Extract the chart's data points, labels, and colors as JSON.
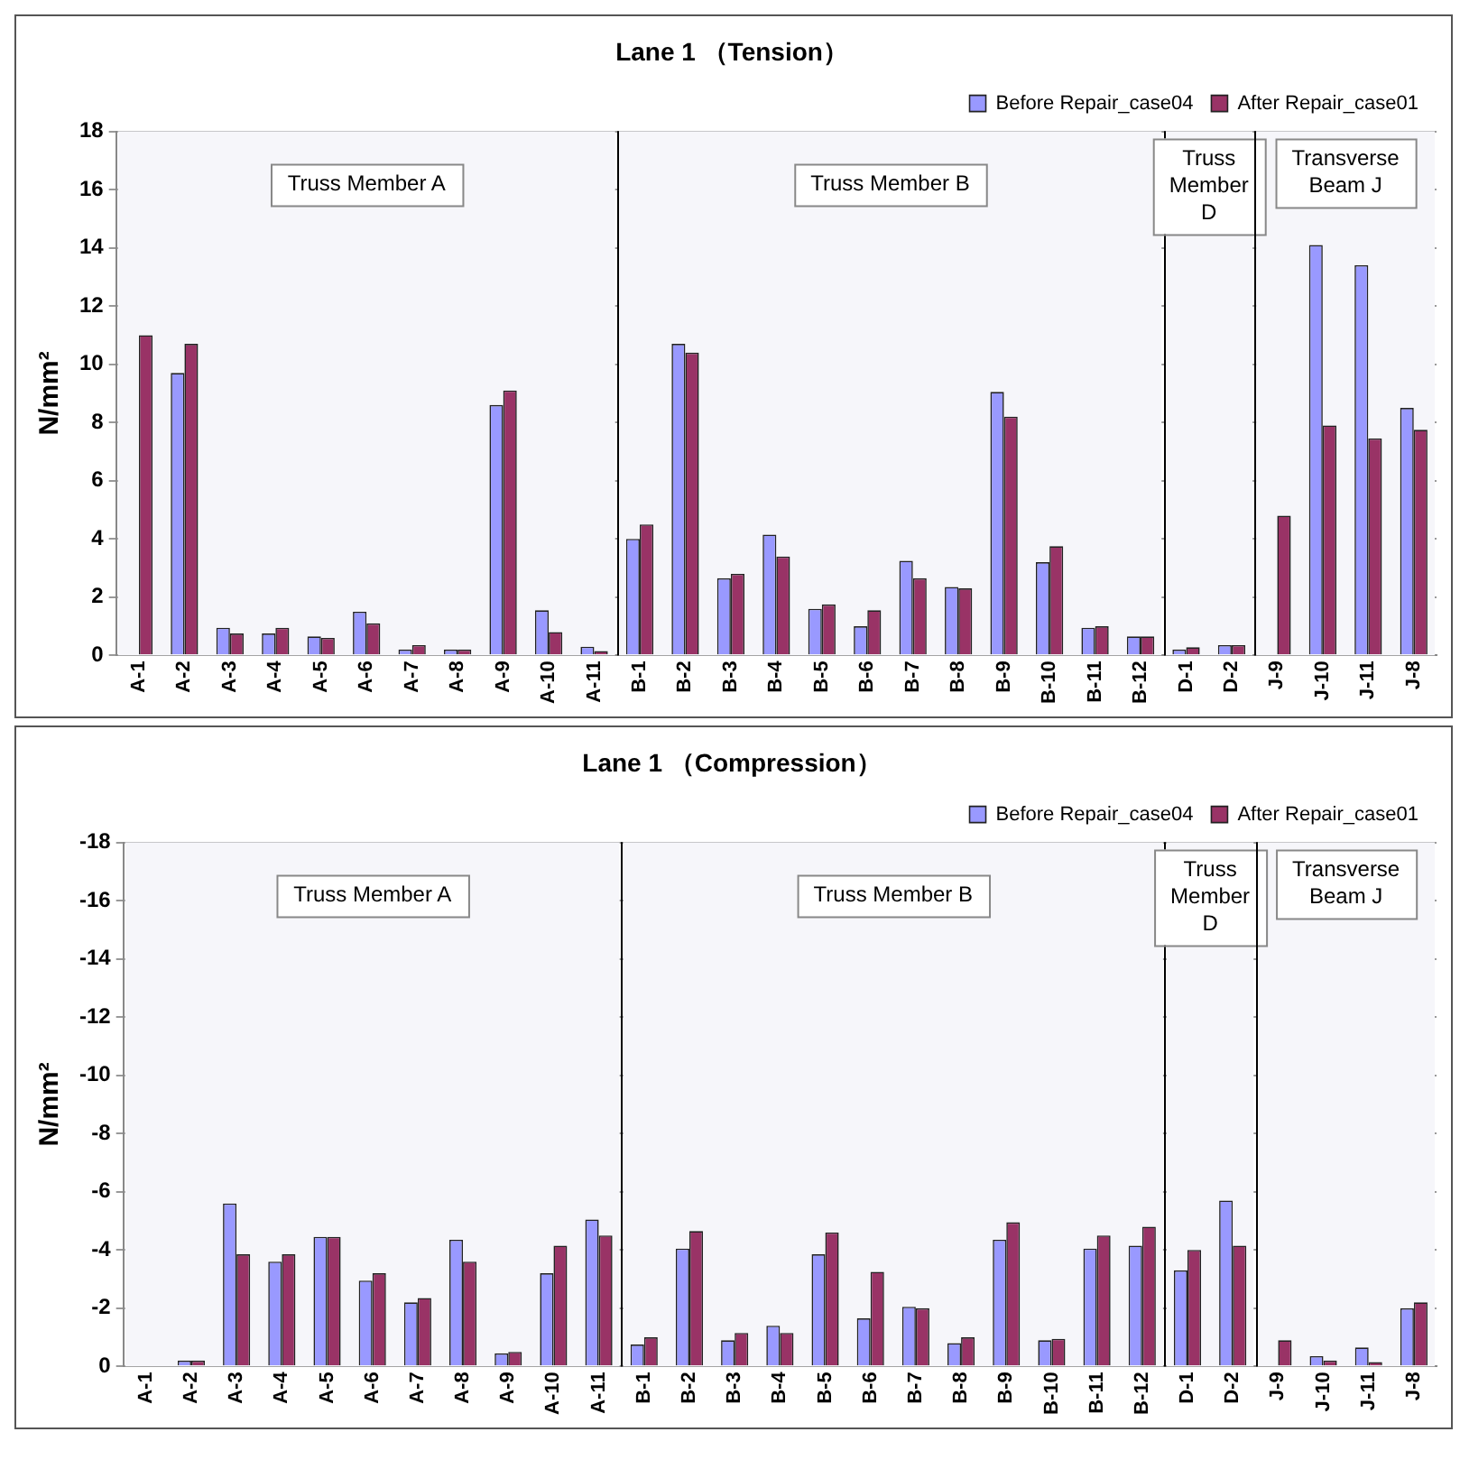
{
  "chart_data": [
    {
      "type": "bar",
      "title": "Lane 1 （Tension）",
      "ylabel": "N/mm²",
      "categories": [
        "A-1",
        "A-2",
        "A-3",
        "A-4",
        "A-5",
        "A-6",
        "A-7",
        "A-8",
        "A-9",
        "A-10",
        "A-11",
        "B-1",
        "B-2",
        "B-3",
        "B-4",
        "B-5",
        "B-6",
        "B-7",
        "B-8",
        "B-9",
        "B-10",
        "B-11",
        "B-12",
        "D-1",
        "D-2",
        "J-9",
        "J-10",
        "J-11",
        "J-8"
      ],
      "series": [
        {
          "name": "Before Repair_case04",
          "color": "#9999ff",
          "values": [
            null,
            9.7,
            0.95,
            0.75,
            0.65,
            1.5,
            0.2,
            0.2,
            8.6,
            1.55,
            0.3,
            4.0,
            10.7,
            2.65,
            4.15,
            1.6,
            1.0,
            3.25,
            2.35,
            9.05,
            3.2,
            0.95,
            0.65,
            0.2,
            0.35,
            null,
            14.1,
            13.4,
            8.5
          ]
        },
        {
          "name": "After Repair_case01",
          "color": "#993366",
          "values": [
            11.0,
            10.7,
            0.75,
            0.95,
            0.6,
            1.1,
            0.35,
            0.2,
            9.1,
            0.8,
            0.15,
            4.5,
            10.4,
            2.8,
            3.4,
            1.75,
            1.55,
            2.65,
            2.3,
            8.2,
            3.75,
            1.0,
            0.65,
            0.28,
            0.35,
            4.8,
            7.9,
            7.45,
            7.75
          ]
        }
      ],
      "ylim": [
        0,
        18
      ],
      "yticks": [
        0,
        2,
        4,
        6,
        8,
        10,
        12,
        14,
        16,
        18
      ],
      "grid": "y",
      "legend": "top right",
      "bands": [
        {
          "axis": "x",
          "from": "A-1",
          "to": "A-11",
          "label": "Truss Member A",
          "color": "#f6f6fa"
        },
        {
          "axis": "x",
          "from": "B-1",
          "to": "B-12",
          "label": "Truss Member B",
          "color": "#f6f6fa"
        },
        {
          "axis": "x",
          "from": "D-1",
          "to": "D-2",
          "label": "Truss Member D",
          "color": "#f6f6fa"
        },
        {
          "axis": "x",
          "from": "J-9",
          "to": "J-8",
          "label": "Transverse Beam J",
          "color": "#f6f6fa"
        }
      ]
    },
    {
      "type": "bar",
      "title": "Lane 1 （Compression）",
      "ylabel": "N/mm²",
      "categories": [
        "A-1",
        "A-2",
        "A-3",
        "A-4",
        "A-5",
        "A-6",
        "A-7",
        "A-8",
        "A-9",
        "A-10",
        "A-11",
        "B-1",
        "B-2",
        "B-3",
        "B-4",
        "B-5",
        "B-6",
        "B-7",
        "B-8",
        "B-9",
        "B-10",
        "B-11",
        "B-12",
        "D-1",
        "D-2",
        "J-9",
        "J-10",
        "J-11",
        "J-8"
      ],
      "series": [
        {
          "name": "Before Repair_case04",
          "color": "#9999ff",
          "values": [
            null,
            -0.2,
            -5.6,
            -3.6,
            -4.45,
            -2.95,
            -2.2,
            -4.35,
            -0.45,
            -3.2,
            -5.05,
            -0.75,
            -4.05,
            -0.9,
            -1.4,
            -3.85,
            -1.65,
            -2.05,
            -0.8,
            -4.35,
            -0.9,
            -4.05,
            -4.15,
            -3.3,
            -5.7,
            null,
            -0.35,
            -0.65,
            -2.0
          ]
        },
        {
          "name": "After Repair_case01",
          "color": "#993366",
          "values": [
            null,
            -0.2,
            -3.85,
            -3.85,
            -4.45,
            -3.2,
            -2.35,
            -3.6,
            -0.5,
            -4.15,
            -4.5,
            -1.0,
            -4.65,
            -1.15,
            -1.15,
            -4.6,
            -3.25,
            -2.0,
            -1.0,
            -4.95,
            -0.95,
            -4.5,
            -4.8,
            -4.0,
            -4.15,
            -0.9,
            -0.2,
            -0.15,
            -2.2
          ]
        }
      ],
      "ylim": [
        0,
        -18
      ],
      "yticks": [
        0,
        -2,
        -4,
        -6,
        -8,
        -10,
        -12,
        -14,
        -16,
        -18
      ],
      "grid": "y",
      "legend": "top right",
      "bands": [
        {
          "axis": "x",
          "from": "A-1",
          "to": "A-11",
          "label": "Truss Member A",
          "color": "#f6f6fa"
        },
        {
          "axis": "x",
          "from": "B-1",
          "to": "B-12",
          "label": "Truss Member B",
          "color": "#f6f6fa"
        },
        {
          "axis": "x",
          "from": "D-1",
          "to": "D-2",
          "label": "Truss Member D",
          "color": "#f6f6fa"
        },
        {
          "axis": "x",
          "from": "J-9",
          "to": "J-8",
          "label": "Transverse Beam J",
          "color": "#f6f6fa"
        }
      ]
    }
  ]
}
